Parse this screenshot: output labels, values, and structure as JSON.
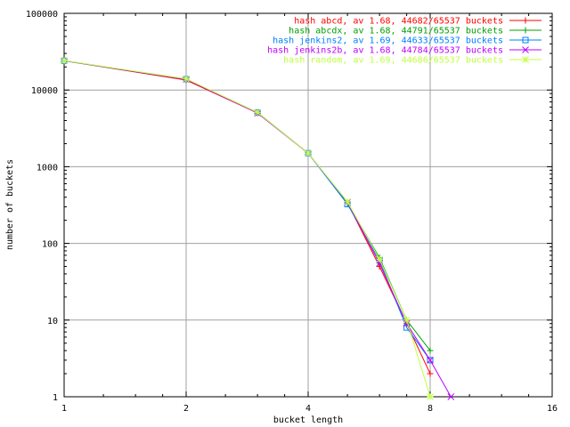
{
  "chart_data": {
    "type": "line",
    "title": "",
    "xlabel": "bucket length",
    "ylabel": "number of buckets",
    "x_scale": "log2",
    "y_scale": "log10",
    "xlim": [
      1,
      16
    ],
    "ylim": [
      1,
      100000
    ],
    "x_ticks": [
      1,
      2,
      4,
      8,
      16
    ],
    "x_tick_labels": [
      "1",
      "2",
      "4",
      "8",
      "16"
    ],
    "y_ticks": [
      1,
      10,
      100,
      1000,
      10000,
      100000
    ],
    "y_tick_labels": [
      "1",
      "10",
      "100",
      "1000",
      "10000",
      "100000"
    ],
    "grid": true,
    "legend_position": "top-right",
    "series": [
      {
        "name": "hash abcd, av 1.68, 44682/65537 buckets",
        "color": "#ff0000",
        "marker": "plus",
        "x": [
          1,
          2,
          3,
          4,
          5,
          6,
          7,
          8
        ],
        "y": [
          24100,
          13500,
          5000,
          1500,
          340,
          50,
          9,
          2
        ]
      },
      {
        "name": "hash abcdx, av 1.68, 44791/65537 buckets",
        "color": "#00a000",
        "marker": "cross",
        "x": [
          1,
          2,
          3,
          4,
          5,
          6,
          7,
          8
        ],
        "y": [
          24000,
          13800,
          5100,
          1500,
          335,
          65,
          10,
          4
        ]
      },
      {
        "name": "hash jenkins2, av 1.69, 44633/65537 buckets",
        "color": "#0080ff",
        "marker": "square",
        "x": [
          1,
          2,
          3,
          4,
          5,
          6,
          7,
          8
        ],
        "y": [
          24100,
          13900,
          5100,
          1500,
          325,
          60,
          8,
          3
        ]
      },
      {
        "name": "hash jenkins2b, av 1.68, 44784/65537 buckets",
        "color": "#c000ff",
        "marker": "x",
        "x": [
          1,
          2,
          3,
          4,
          5,
          6,
          7,
          8,
          9
        ],
        "y": [
          24100,
          13800,
          5000,
          1500,
          345,
          55,
          9,
          3,
          1
        ]
      },
      {
        "name": "hash random, av 1.69, 44686/65537 buckets",
        "color": "#c0ff40",
        "marker": "star",
        "x": [
          1,
          2,
          3,
          4,
          5,
          6,
          7,
          8
        ],
        "y": [
          24200,
          14000,
          5100,
          1500,
          350,
          62,
          10,
          1
        ]
      }
    ]
  }
}
